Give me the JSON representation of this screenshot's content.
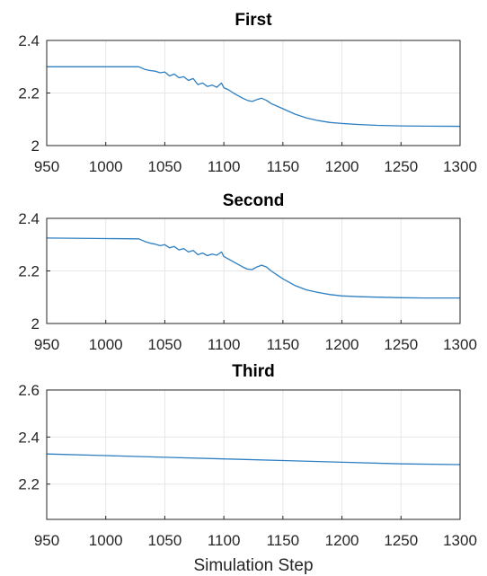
{
  "chart_data": [
    {
      "type": "line",
      "title": "First",
      "xlabel": "",
      "ylabel": "",
      "xlim": [
        950,
        1300
      ],
      "ylim": [
        2,
        2.4
      ],
      "xticks": [
        "950",
        "1000",
        "1050",
        "1100",
        "1150",
        "1200",
        "1250",
        "1300"
      ],
      "yticks": [
        "2",
        "2.2",
        "2.4"
      ],
      "grid": true,
      "color": "#2d7fc1",
      "x": [
        950,
        1000,
        1028,
        1033,
        1038,
        1042,
        1046,
        1050,
        1054,
        1058,
        1062,
        1066,
        1070,
        1074,
        1078,
        1082,
        1086,
        1090,
        1094,
        1098,
        1100,
        1104,
        1108,
        1112,
        1116,
        1120,
        1124,
        1128,
        1132,
        1136,
        1140,
        1145,
        1150,
        1160,
        1170,
        1180,
        1190,
        1200,
        1215,
        1230,
        1250,
        1270,
        1300
      ],
      "y": [
        2.3,
        2.3,
        2.3,
        2.29,
        2.285,
        2.283,
        2.277,
        2.28,
        2.265,
        2.272,
        2.258,
        2.262,
        2.248,
        2.255,
        2.232,
        2.238,
        2.225,
        2.23,
        2.222,
        2.238,
        2.22,
        2.212,
        2.2,
        2.19,
        2.18,
        2.172,
        2.168,
        2.175,
        2.18,
        2.172,
        2.16,
        2.15,
        2.14,
        2.12,
        2.105,
        2.095,
        2.088,
        2.084,
        2.08,
        2.077,
        2.075,
        2.074,
        2.073
      ]
    },
    {
      "type": "line",
      "title": "Second",
      "xlabel": "",
      "ylabel": "",
      "xlim": [
        950,
        1300
      ],
      "ylim": [
        2,
        2.4
      ],
      "xticks": [
        "950",
        "1000",
        "1050",
        "1100",
        "1150",
        "1200",
        "1250",
        "1300"
      ],
      "yticks": [
        "2",
        "2.2",
        "2.4"
      ],
      "grid": true,
      "color": "#2d7fc1",
      "x": [
        950,
        1000,
        1028,
        1033,
        1038,
        1042,
        1046,
        1050,
        1054,
        1058,
        1062,
        1066,
        1070,
        1074,
        1078,
        1082,
        1086,
        1090,
        1094,
        1098,
        1100,
        1104,
        1108,
        1112,
        1116,
        1120,
        1124,
        1128,
        1132,
        1136,
        1140,
        1145,
        1150,
        1160,
        1170,
        1180,
        1190,
        1200,
        1215,
        1230,
        1250,
        1270,
        1300
      ],
      "y": [
        2.325,
        2.323,
        2.322,
        2.312,
        2.305,
        2.302,
        2.296,
        2.3,
        2.288,
        2.293,
        2.28,
        2.285,
        2.272,
        2.278,
        2.262,
        2.268,
        2.258,
        2.264,
        2.26,
        2.272,
        2.255,
        2.245,
        2.235,
        2.225,
        2.215,
        2.207,
        2.205,
        2.215,
        2.222,
        2.215,
        2.2,
        2.185,
        2.17,
        2.145,
        2.128,
        2.118,
        2.11,
        2.105,
        2.102,
        2.1,
        2.098,
        2.097,
        2.097
      ]
    },
    {
      "type": "line",
      "title": "Third",
      "xlabel": "Simulation Step",
      "ylabel": "",
      "xlim": [
        950,
        1300
      ],
      "ylim": [
        2.05,
        2.6
      ],
      "xticks": [
        "950",
        "1000",
        "1050",
        "1100",
        "1150",
        "1200",
        "1250",
        "1300"
      ],
      "yticks": [
        "2.2",
        "2.4",
        "2.6"
      ],
      "grid": true,
      "color": "#2d7fc1",
      "x": [
        950,
        1000,
        1050,
        1100,
        1150,
        1200,
        1250,
        1300
      ],
      "y": [
        2.328,
        2.321,
        2.314,
        2.307,
        2.3,
        2.293,
        2.286,
        2.283
      ]
    }
  ]
}
